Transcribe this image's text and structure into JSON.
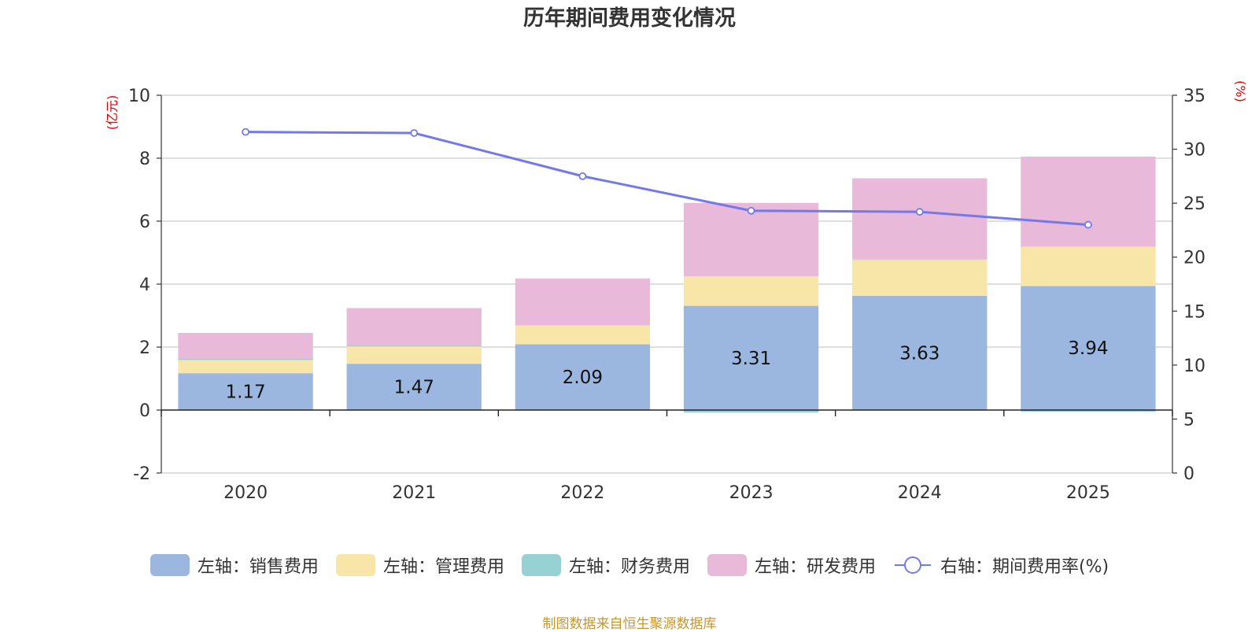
{
  "chart_data": {
    "type": "bar",
    "stacked": true,
    "title": "历年期间费用变化情况",
    "categories": [
      "2020",
      "2021",
      "2022",
      "2023",
      "2024",
      "2025"
    ],
    "left_axis": {
      "unit_label": "(亿元)",
      "ylim": [
        -2,
        10
      ],
      "ticks": [
        -2,
        0,
        2,
        4,
        6,
        8,
        10
      ]
    },
    "right_axis": {
      "unit_label": "(%)",
      "ylim": [
        0,
        35
      ],
      "ticks": [
        0,
        5,
        10,
        15,
        20,
        25,
        30,
        35
      ]
    },
    "series": [
      {
        "name": "左轴：销售费用",
        "axis": "left",
        "color": "#9bb7e0",
        "values": [
          1.17,
          1.47,
          2.09,
          3.31,
          3.63,
          3.94
        ],
        "show_labels": true
      },
      {
        "name": "左轴：管理费用",
        "axis": "left",
        "color": "#f8e6a8",
        "values": [
          0.42,
          0.55,
          0.6,
          0.94,
          1.14,
          1.25
        ],
        "show_labels": false
      },
      {
        "name": "左轴：财务费用",
        "axis": "left",
        "color": "#96d2d4",
        "values": [
          0.05,
          0.04,
          0.0,
          -0.08,
          0.01,
          -0.05
        ],
        "show_labels": false
      },
      {
        "name": "左轴：研发费用",
        "axis": "left",
        "color": "#e8b9d8",
        "values": [
          0.81,
          1.18,
          1.49,
          2.33,
          2.58,
          2.86
        ],
        "show_labels": false
      }
    ],
    "line_series": {
      "name": "右轴：期间费用率(%)",
      "axis": "right",
      "color": "#7379ea",
      "values": [
        31.6,
        31.5,
        27.5,
        24.3,
        24.2,
        23.0
      ]
    }
  },
  "source_text": "制图数据来自恒生聚源数据库"
}
